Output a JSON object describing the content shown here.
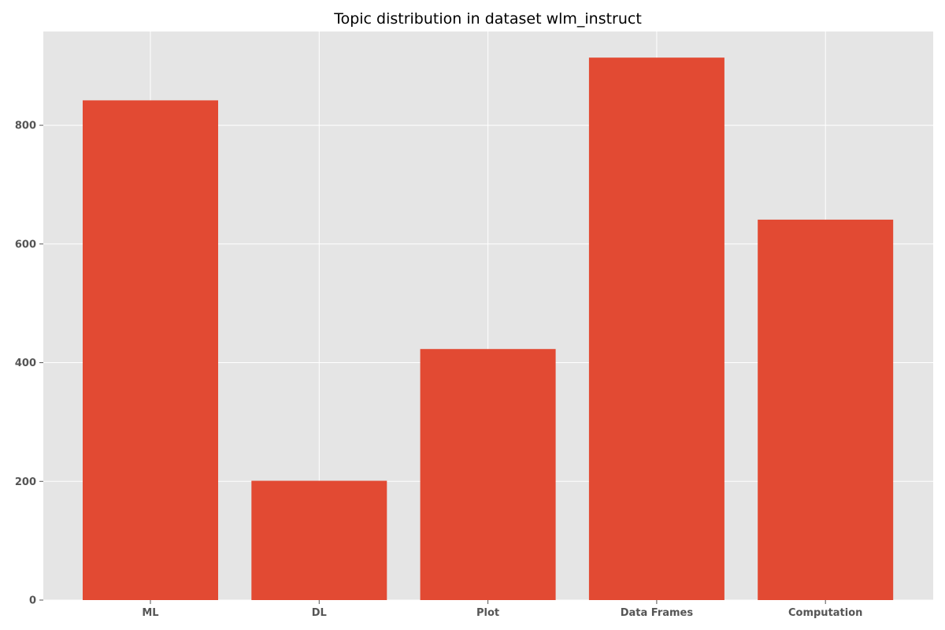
{
  "chart_data": {
    "type": "bar",
    "title": "Topic distribution in dataset wlm_instruct",
    "xlabel": "",
    "ylabel": "",
    "categories": [
      "ML",
      "DL",
      "Plot",
      "Data Frames",
      "Computation"
    ],
    "values": [
      842,
      201,
      423,
      914,
      641
    ],
    "ylim": [
      0,
      958
    ],
    "yticks": [
      0,
      200,
      400,
      600,
      800
    ],
    "grid": true,
    "legend": "none",
    "colors": {
      "bar": "#E24A33",
      "plot_background": "#E5E5E5",
      "grid": "#FFFFFF",
      "tick_text": "#555555"
    }
  }
}
